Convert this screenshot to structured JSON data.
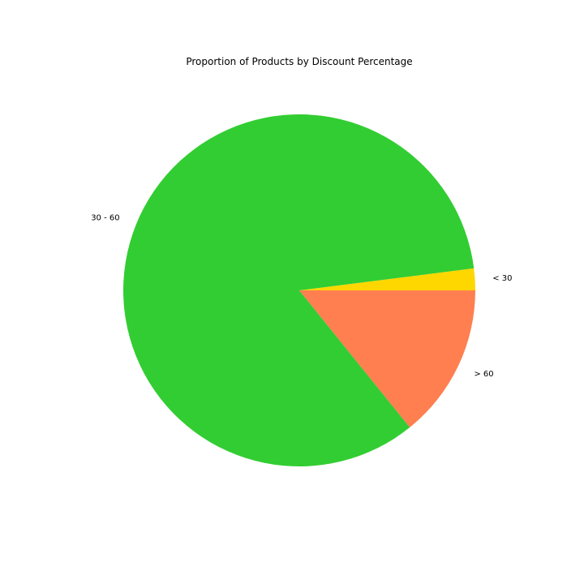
{
  "chart_data": {
    "type": "pie",
    "title": "Proportion of Products by Discount Percentage",
    "categories": [
      "< 30",
      "30 - 60",
      "> 60"
    ],
    "values": [
      2.0,
      83.8,
      14.2
    ],
    "colors": [
      "#FFD700",
      "#32CD32",
      "#FF7F50"
    ],
    "start_angle_deg": 0,
    "direction": "counterclockwise",
    "legend": "none"
  }
}
